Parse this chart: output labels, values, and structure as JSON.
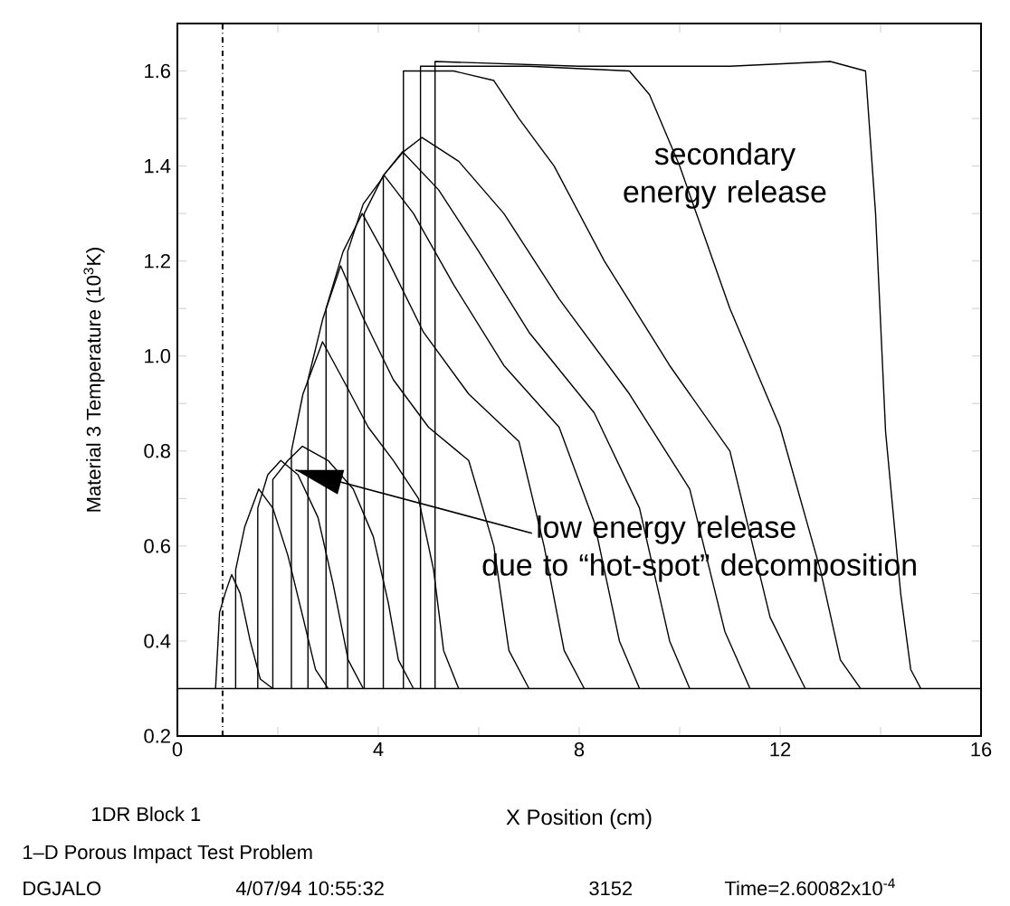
{
  "chart_data": {
    "type": "line",
    "xlabel": "X Position (cm)",
    "ylabel": "Material 3 Temperature (10$^{3}$K)",
    "xlim": [
      0,
      16
    ],
    "ylim": [
      0.2,
      1.7
    ],
    "xticks": [
      0,
      {
        "value": 2,
        "label": null
      },
      4,
      {
        "value": 6,
        "label": null
      },
      8,
      {
        "value": 10,
        "label": null
      },
      12,
      {
        "value": 14,
        "label": null
      },
      16
    ],
    "yticks": [
      0.2,
      {
        "value": 0.3,
        "label": null
      },
      0.4,
      {
        "value": 0.5,
        "label": null
      },
      0.6,
      {
        "value": 0.7,
        "label": null
      },
      0.8,
      {
        "value": 0.9,
        "label": null
      },
      {
        "value": 1.0,
        "label": "1.0"
      },
      {
        "value": 1.1,
        "label": null
      },
      1.2,
      {
        "value": 1.3,
        "label": null
      },
      1.4,
      {
        "value": 1.5,
        "label": null
      },
      1.6
    ],
    "ref_lines": [
      {
        "axis": "x",
        "value": 0.9,
        "line_style": "dashdot",
        "color": "#000000"
      }
    ],
    "annotations": [
      {
        "text": "low energy release due to “hot-spot” decomposition",
        "x": 2.35,
        "y": 0.76
      },
      "secondary energy release",
      "1DR Block 1",
      "1–D Porous Impact Test Problem",
      "DGJALO",
      "4/07/94 10:55:32",
      "3152",
      "Time=2.60082x10$^{-4}$"
    ],
    "series": [
      {
        "color": "#000000",
        "x": [
          0,
          16
        ],
        "values": [
          0.3,
          0.3
        ]
      },
      {
        "color": "#000000",
        "x": [
          0.76,
          0.84,
          0.95,
          1.08,
          1.25,
          1.45,
          1.65,
          1.9
        ],
        "values": [
          0.3,
          0.46,
          0.5,
          0.54,
          0.5,
          0.4,
          0.32,
          0.3
        ]
      },
      {
        "color": "#000000",
        "x": [
          1.16,
          1.16,
          1.34,
          1.62,
          1.9,
          2.2,
          2.5,
          2.75,
          3.0
        ],
        "values": [
          0.3,
          0.55,
          0.64,
          0.72,
          0.68,
          0.58,
          0.45,
          0.34,
          0.3
        ]
      },
      {
        "color": "#000000",
        "x": [
          1.6,
          1.6,
          1.8,
          2.06,
          2.4,
          2.8,
          3.1,
          3.4,
          3.7
        ],
        "values": [
          0.3,
          0.68,
          0.75,
          0.78,
          0.75,
          0.66,
          0.52,
          0.36,
          0.3
        ]
      },
      {
        "color": "#000000",
        "x": [
          1.9,
          1.9,
          2.2,
          2.49,
          3.0,
          3.5,
          3.9,
          4.2,
          4.4,
          4.7
        ],
        "values": [
          0.3,
          0.74,
          0.78,
          0.81,
          0.78,
          0.72,
          0.62,
          0.48,
          0.36,
          0.3
        ]
      },
      {
        "color": "#000000",
        "x": [
          2.27,
          2.27,
          2.5,
          2.89,
          3.3,
          3.8,
          4.3,
          4.8,
          5.1,
          5.3,
          5.6
        ],
        "values": [
          0.3,
          0.8,
          0.92,
          1.03,
          0.95,
          0.85,
          0.78,
          0.7,
          0.55,
          0.38,
          0.3
        ]
      },
      {
        "color": "#000000",
        "x": [
          2.6,
          2.6,
          2.9,
          3.25,
          3.7,
          4.3,
          5.0,
          5.8,
          6.3,
          6.6,
          7.0
        ],
        "values": [
          0.3,
          0.95,
          1.08,
          1.19,
          1.08,
          0.95,
          0.85,
          0.78,
          0.6,
          0.38,
          0.3
        ]
      },
      {
        "color": "#000000",
        "x": [
          2.96,
          2.96,
          3.3,
          3.68,
          4.2,
          4.9,
          5.8,
          6.8,
          7.3,
          7.7,
          8.1
        ],
        "values": [
          0.3,
          1.1,
          1.22,
          1.3,
          1.2,
          1.05,
          0.92,
          0.82,
          0.6,
          0.38,
          0.3
        ]
      },
      {
        "color": "#000000",
        "x": [
          3.39,
          3.39,
          3.7,
          4.12,
          4.7,
          5.5,
          6.5,
          7.6,
          8.3,
          8.8,
          9.2
        ],
        "values": [
          0.3,
          1.22,
          1.32,
          1.38,
          1.3,
          1.15,
          0.98,
          0.85,
          0.65,
          0.4,
          0.3
        ]
      },
      {
        "color": "#000000",
        "x": [
          3.72,
          3.72,
          4.1,
          4.48,
          5.2,
          6.0,
          7.0,
          8.3,
          9.2,
          9.8,
          10.2
        ],
        "values": [
          0.3,
          1.3,
          1.38,
          1.43,
          1.35,
          1.22,
          1.05,
          0.88,
          0.68,
          0.4,
          0.3
        ]
      },
      {
        "color": "#000000",
        "x": [
          4.1,
          4.1,
          4.5,
          4.87,
          5.6,
          6.5,
          7.6,
          9.0,
          10.2,
          10.9,
          11.4
        ],
        "values": [
          0.3,
          1.38,
          1.43,
          1.46,
          1.41,
          1.3,
          1.12,
          0.92,
          0.72,
          0.42,
          0.3
        ]
      },
      {
        "color": "#000000",
        "x": [
          4.5,
          4.5,
          5.5,
          6.3,
          6.8,
          7.5,
          8.5,
          9.8,
          11.0,
          11.8,
          12.5
        ],
        "values": [
          0.3,
          1.6,
          1.6,
          1.58,
          1.5,
          1.4,
          1.2,
          0.98,
          0.8,
          0.45,
          0.3
        ]
      },
      {
        "color": "#000000",
        "x": [
          4.84,
          4.84,
          7.0,
          9.0,
          9.4,
          10.0,
          11.0,
          12.0,
          12.8,
          13.2,
          13.6
        ],
        "values": [
          0.3,
          1.61,
          1.61,
          1.6,
          1.55,
          1.4,
          1.1,
          0.85,
          0.55,
          0.36,
          0.3
        ]
      },
      {
        "color": "#000000",
        "x": [
          5.13,
          5.13,
          8.0,
          11.0,
          13.0,
          13.7,
          13.9,
          14.1,
          14.4,
          14.6,
          14.8
        ],
        "values": [
          0.3,
          1.62,
          1.61,
          1.61,
          1.62,
          1.6,
          1.3,
          0.84,
          0.5,
          0.34,
          0.3
        ]
      }
    ]
  }
}
